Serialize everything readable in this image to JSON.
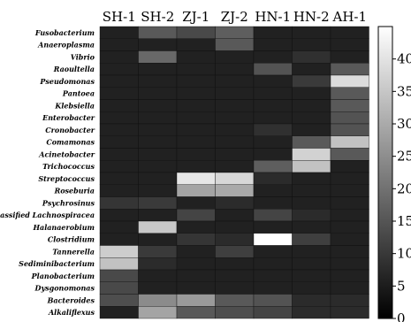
{
  "chart_data": {
    "type": "heatmap",
    "title": "",
    "xlabel": "",
    "ylabel": "",
    "columns": [
      "SH-1",
      "SH-2",
      "ZJ-1",
      "ZJ-2",
      "HN-1",
      "HN-2",
      "AH-1"
    ],
    "rows": [
      "Fusobacterium",
      "Anaeroplasma",
      "Vibrio",
      "Raoultella",
      "Pseudomonas",
      "Pantoea",
      "Klebsiella",
      "Enterobacter",
      "Cronobacter",
      "Comamonas",
      "Acinetobacter",
      "Trichococcus",
      "Streptococcus",
      "Roseburia",
      "Psychrosinus",
      "Unclassified Lachnospiracea",
      "Halanaerobium",
      "Clostridium",
      "Tannerella",
      "Sediminibacterium",
      "Planobacterium",
      "Dysgonomonas",
      "Bacteroides",
      "Alkaliflexus"
    ],
    "values": [
      [
        1,
        12,
        9,
        13,
        1,
        1,
        1
      ],
      [
        1,
        1,
        1,
        12,
        1,
        1,
        1
      ],
      [
        1,
        15,
        1,
        1,
        1,
        4,
        1
      ],
      [
        1,
        1,
        1,
        1,
        11,
        1,
        12
      ],
      [
        1,
        1,
        1,
        1,
        1,
        6,
        38
      ],
      [
        1,
        1,
        1,
        1,
        1,
        1,
        12
      ],
      [
        1,
        1,
        1,
        1,
        1,
        1,
        12
      ],
      [
        1,
        1,
        1,
        1,
        1,
        1,
        11
      ],
      [
        1,
        1,
        1,
        1,
        4,
        1,
        11
      ],
      [
        1,
        1,
        1,
        1,
        1,
        12,
        33
      ],
      [
        1,
        1,
        1,
        1,
        1,
        36,
        12
      ],
      [
        1,
        1,
        1,
        1,
        13,
        33,
        1
      ],
      [
        1,
        1,
        40,
        37,
        3,
        1,
        1
      ],
      [
        1,
        1,
        27,
        28,
        1,
        1,
        1
      ],
      [
        5,
        6,
        1,
        3,
        1,
        1,
        1
      ],
      [
        1,
        1,
        8,
        1,
        8,
        3,
        1
      ],
      [
        1,
        34,
        1,
        1,
        1,
        1,
        1
      ],
      [
        1,
        1,
        5,
        3,
        45,
        7,
        1
      ],
      [
        35,
        6,
        1,
        7,
        1,
        1,
        1
      ],
      [
        33,
        3,
        1,
        1,
        1,
        1,
        1
      ],
      [
        9,
        1,
        1,
        1,
        1,
        1,
        1
      ],
      [
        9,
        1,
        1,
        1,
        1,
        1,
        1
      ],
      [
        10,
        22,
        25,
        12,
        11,
        3,
        3
      ],
      [
        1,
        27,
        12,
        10,
        8,
        3,
        3
      ]
    ],
    "colorbar": {
      "min": 0,
      "max": 45,
      "ticks": [
        0,
        5,
        10,
        15,
        20,
        25,
        30,
        35,
        40
      ],
      "colormap": "gray",
      "low_color": "#000000",
      "high_color": "#ffffff"
    },
    "grid": false,
    "legend": "none"
  }
}
